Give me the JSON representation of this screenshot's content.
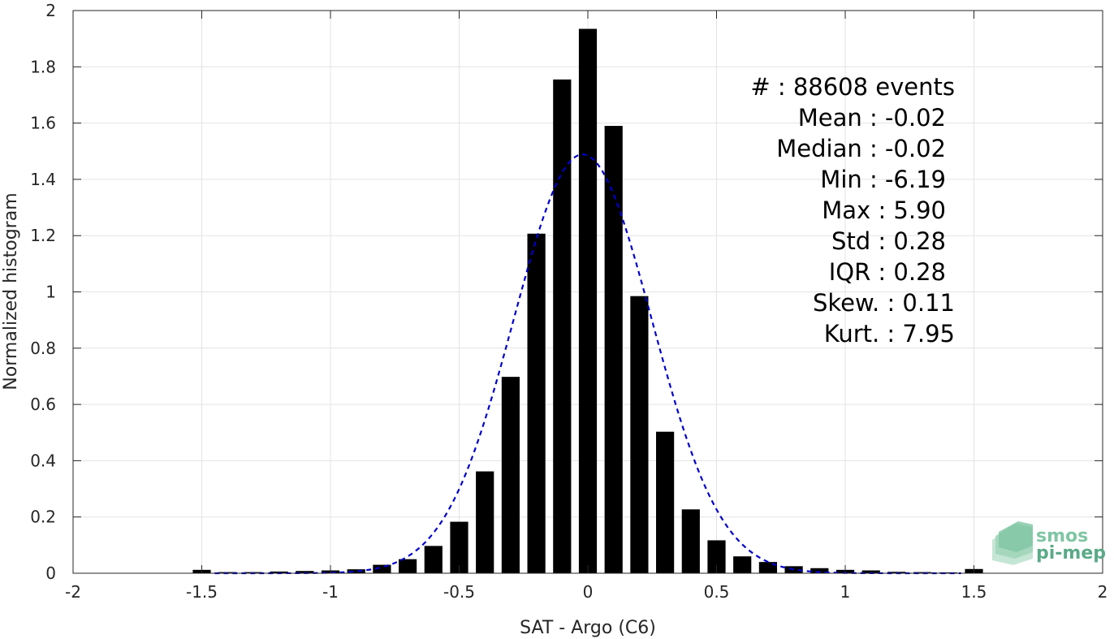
{
  "chart_data": {
    "type": "bar",
    "xlabel": "SAT - Argo (C6)",
    "ylabel": "Normalized histogram",
    "xlim": [
      -2,
      2
    ],
    "ylim": [
      0,
      2
    ],
    "xticks": [
      -2,
      -1.5,
      -1,
      -0.5,
      0,
      0.5,
      1,
      1.5,
      2
    ],
    "xtick_labels": [
      "-2",
      "-1.5",
      "-1",
      "-0.5",
      "0",
      "0.5",
      "1",
      "1.5",
      "2"
    ],
    "yticks": [
      0,
      0.2,
      0.4,
      0.6,
      0.8,
      1,
      1.2,
      1.4,
      1.6,
      1.8,
      2
    ],
    "ytick_labels": [
      "0",
      "0.2",
      "0.4",
      "0.6",
      "0.8",
      "1",
      "1.2",
      "1.4",
      "1.6",
      "1.8",
      "2"
    ],
    "grid": true,
    "bar_width": 0.07,
    "bar_color": "#000000",
    "x": [
      -1.5,
      -1.4,
      -1.3,
      -1.2,
      -1.1,
      -1.0,
      -0.9,
      -0.8,
      -0.7,
      -0.6,
      -0.5,
      -0.4,
      -0.3,
      -0.2,
      -0.1,
      0.0,
      0.1,
      0.2,
      0.3,
      0.4,
      0.5,
      0.6,
      0.7,
      0.8,
      0.9,
      1.0,
      1.1,
      1.2,
      1.3,
      1.4,
      1.5
    ],
    "values": [
      0.012,
      0.004,
      0.004,
      0.006,
      0.008,
      0.01,
      0.014,
      0.03,
      0.05,
      0.097,
      0.183,
      0.362,
      0.698,
      1.207,
      1.755,
      1.935,
      1.59,
      0.985,
      0.503,
      0.227,
      0.117,
      0.06,
      0.04,
      0.025,
      0.018,
      0.012,
      0.01,
      0.005,
      0.004,
      0.003,
      0.015
    ],
    "fit_curve": {
      "type": "gaussian",
      "color": "#0000cc",
      "style": "dashed",
      "mean": -0.02,
      "std": 0.268,
      "x_range": [
        -1.45,
        1.45
      ]
    },
    "stats": {
      "count_label": "#  : 88608 events",
      "mean": "Mean : -0.02",
      "median": "Median : -0.02",
      "min": "Min : -6.19",
      "max": "Max : 5.90",
      "std": "Std : 0.28",
      "iqr": "IQR : 0.28",
      "skew": "Skew. : 0.11",
      "kurt": "Kurt. : 7.95"
    }
  },
  "logo": {
    "line1": "smos",
    "line2": "pi-mep",
    "color1": "#7fc6a4",
    "color2": "#5aaa87"
  }
}
